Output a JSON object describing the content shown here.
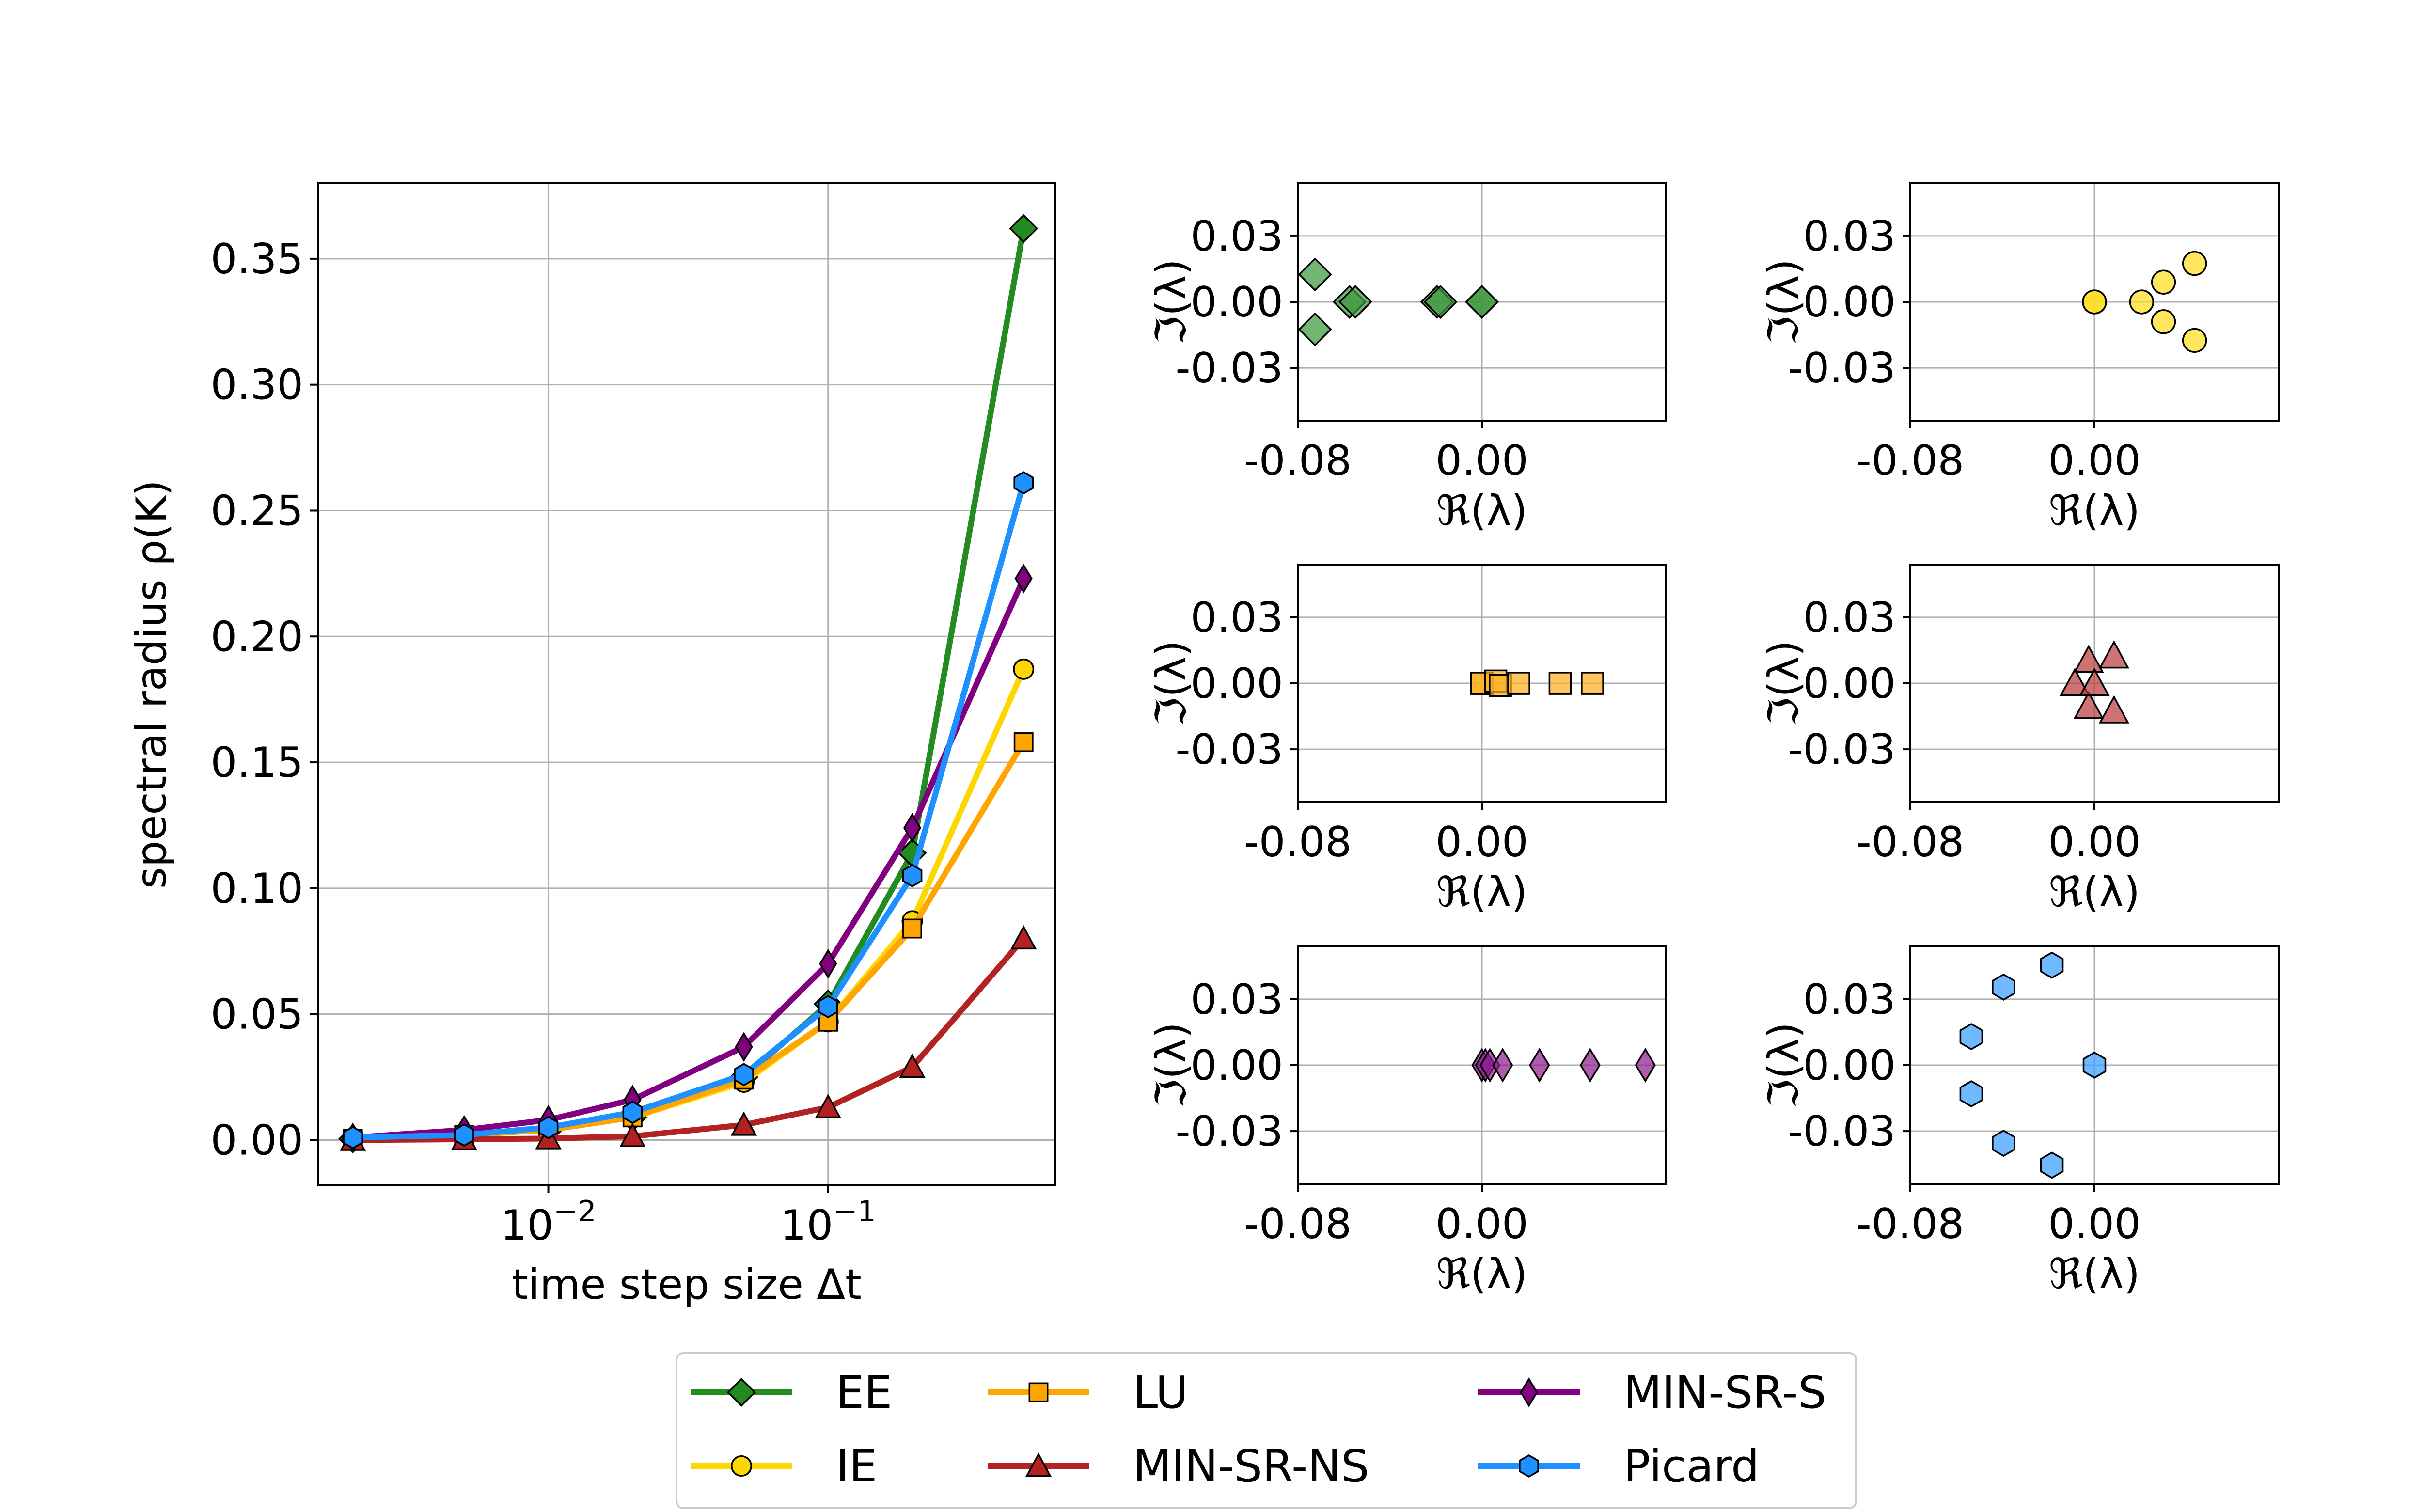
{
  "chart_data": [
    {
      "type": "line",
      "xscale": "log",
      "xlim": [
        0.0015,
        0.65
      ],
      "ylim": [
        -0.018,
        0.38
      ],
      "xticks": [
        {
          "value": 0.01,
          "base": "10",
          "exp": "−2"
        },
        {
          "value": 0.1,
          "base": "10",
          "exp": "−1"
        }
      ],
      "yticks": [
        {
          "value": 0.0,
          "label": "0.00"
        },
        {
          "value": 0.05,
          "label": "0.05"
        },
        {
          "value": 0.1,
          "label": "0.10"
        },
        {
          "value": 0.15,
          "label": "0.15"
        },
        {
          "value": 0.2,
          "label": "0.20"
        },
        {
          "value": 0.25,
          "label": "0.25"
        },
        {
          "value": 0.3,
          "label": "0.30"
        },
        {
          "value": 0.35,
          "label": "0.35"
        }
      ],
      "xlabel": "time step size Δt",
      "ylabel": "spectral radius ρ(K)",
      "x": [
        0.002,
        0.005,
        0.01,
        0.02,
        0.05,
        0.1,
        0.2,
        0.5
      ],
      "series": [
        {
          "name": "EE",
          "marker": "diamond",
          "color": "#228b22",
          "values": [
            0.0005,
            0.002,
            0.004,
            0.009,
            0.025,
            0.054,
            0.114,
            0.362
          ]
        },
        {
          "name": "IE",
          "marker": "circle",
          "color": "#ffd700",
          "values": [
            0.0005,
            0.002,
            0.004,
            0.009,
            0.023,
            0.047,
            0.087,
            0.187
          ]
        },
        {
          "name": "LU",
          "marker": "square",
          "color": "#ffa500",
          "values": [
            0.0005,
            0.002,
            0.004,
            0.009,
            0.024,
            0.047,
            0.084,
            0.158
          ]
        },
        {
          "name": "MIN-SR-NS",
          "marker": "triangle",
          "color": "#b22222",
          "values": [
            0.0,
            0.0003,
            0.0006,
            0.0015,
            0.006,
            0.013,
            0.029,
            0.08
          ]
        },
        {
          "name": "MIN-SR-S",
          "marker": "thin_diamond",
          "color": "#800080",
          "values": [
            0.001,
            0.004,
            0.008,
            0.016,
            0.037,
            0.07,
            0.124,
            0.223
          ]
        },
        {
          "name": "Picard",
          "marker": "hexagon",
          "color": "#1e90ff",
          "values": [
            0.001,
            0.002,
            0.005,
            0.011,
            0.026,
            0.053,
            0.105,
            0.261
          ]
        }
      ]
    },
    {
      "type": "scatter",
      "series": "EE",
      "marker": "diamond",
      "color": "#228b22",
      "points": [
        [
          -0.0725,
          0.0125
        ],
        [
          -0.0725,
          -0.0125
        ],
        [
          -0.0575,
          0.0
        ],
        [
          -0.055,
          0.0
        ],
        [
          -0.0195,
          0.0
        ],
        [
          -0.018,
          0.0
        ],
        [
          0.0,
          0.0
        ],
        [
          0.0,
          0.0
        ]
      ]
    },
    {
      "type": "scatter",
      "series": "IE",
      "marker": "circle",
      "color": "#ffd700",
      "points": [
        [
          0.0,
          0.0
        ],
        [
          0.0,
          0.0
        ],
        [
          0.0205,
          0.0
        ],
        [
          0.03,
          0.009
        ],
        [
          0.03,
          -0.009
        ],
        [
          0.0435,
          0.0175
        ],
        [
          0.0435,
          -0.0175
        ]
      ]
    },
    {
      "type": "scatter",
      "series": "LU",
      "marker": "square",
      "color": "#ffa500",
      "points": [
        [
          0.0,
          0.0
        ],
        [
          0.0,
          0.0
        ],
        [
          0.006,
          0.001
        ],
        [
          0.008,
          -0.001
        ],
        [
          0.016,
          0.0
        ],
        [
          0.034,
          0.0
        ],
        [
          0.048,
          0.0
        ]
      ]
    },
    {
      "type": "scatter",
      "series": "MIN-SR-NS",
      "marker": "triangle",
      "color": "#b22222",
      "points": [
        [
          -0.0025,
          0.0105
        ],
        [
          -0.0025,
          -0.0105
        ],
        [
          -0.0085,
          0.0
        ],
        [
          0.0,
          0.0
        ],
        [
          0.0085,
          0.0125
        ],
        [
          0.0085,
          -0.0125
        ]
      ]
    },
    {
      "type": "scatter",
      "series": "MIN-SR-S",
      "marker": "thin_diamond",
      "color": "#800080",
      "points": [
        [
          0.0,
          0.0
        ],
        [
          0.0015,
          0.0
        ],
        [
          0.0035,
          0.0
        ],
        [
          0.009,
          0.0
        ],
        [
          0.025,
          0.0
        ],
        [
          0.047,
          0.0
        ],
        [
          0.071,
          0.0
        ]
      ]
    },
    {
      "type": "scatter",
      "series": "Picard",
      "marker": "hexagon",
      "color": "#1e90ff",
      "points": [
        [
          -0.0535,
          0.013
        ],
        [
          -0.0535,
          -0.013
        ],
        [
          -0.0395,
          0.0355
        ],
        [
          -0.0395,
          -0.0355
        ],
        [
          -0.0185,
          0.0455
        ],
        [
          -0.0185,
          -0.0455
        ],
        [
          0.0,
          0.0
        ]
      ]
    }
  ],
  "eigen_panels": {
    "xlim": [
      -0.08,
      0.08
    ],
    "ylim": [
      -0.054,
      0.054
    ],
    "xticks": [
      {
        "value": -0.08,
        "label": "-0.08"
      },
      {
        "value": 0.0,
        "label": "0.00"
      }
    ],
    "yticks": [
      {
        "value": 0.03,
        "label": "0.03"
      },
      {
        "value": 0.0,
        "label": "0.00"
      },
      {
        "value": -0.03,
        "label": "-0.03"
      }
    ],
    "xlabel": "ℜ(λ)",
    "ylabel": "ℑ(λ)"
  },
  "legend": {
    "placement": "bottom-center",
    "entries": [
      {
        "label": "EE",
        "marker": "diamond",
        "color": "#228b22"
      },
      {
        "label": "IE",
        "marker": "circle",
        "color": "#ffd700"
      },
      {
        "label": "LU",
        "marker": "square",
        "color": "#ffa500"
      },
      {
        "label": "MIN-SR-NS",
        "marker": "triangle",
        "color": "#b22222"
      },
      {
        "label": "MIN-SR-S",
        "marker": "thin_diamond",
        "color": "#800080"
      },
      {
        "label": "Picard",
        "marker": "hexagon",
        "color": "#1e90ff"
      }
    ]
  }
}
